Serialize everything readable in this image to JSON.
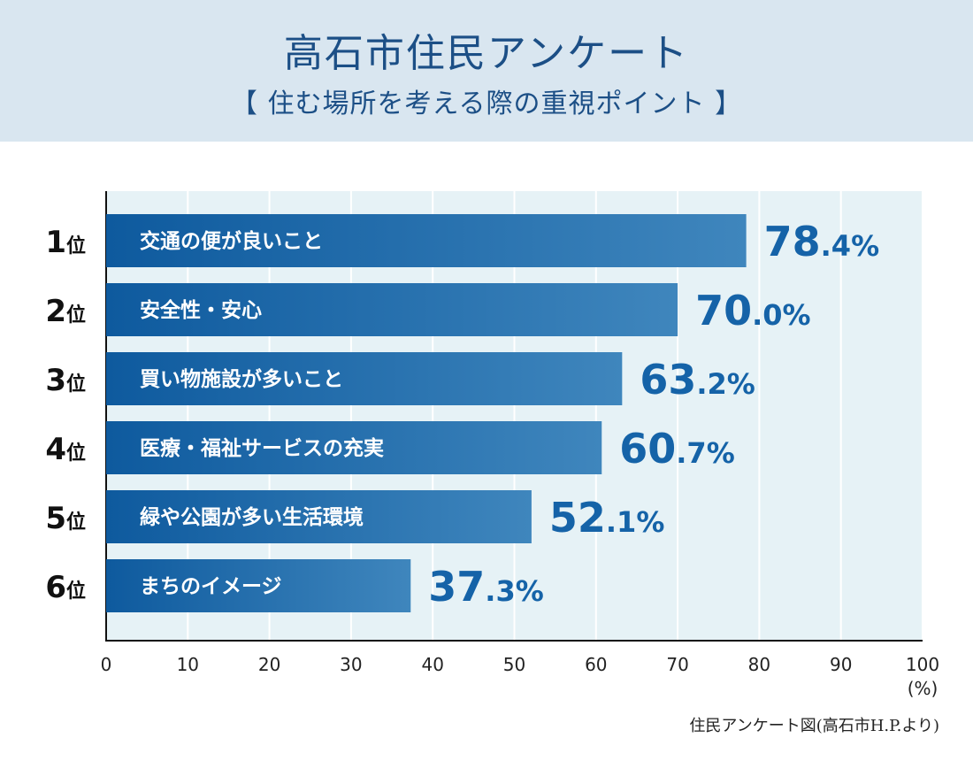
{
  "header": {
    "title": "高石市住民アンケート",
    "subtitle": "【 住む場所を考える際の重視ポイント 】"
  },
  "source": "住民アンケート図(高石市H.P.より)",
  "colors": {
    "header_bg": "#d9e6f0",
    "plot_bg": "#e6f2f6",
    "bar_dark": "#0e5a9e",
    "bar_light": "#3f86bd",
    "value_text": "#1563a8"
  },
  "chart_data": {
    "type": "bar",
    "orientation": "horizontal",
    "title": "高石市住民アンケート",
    "subtitle": "【 住む場所を考える際の重視ポイント 】",
    "rank_suffix": "位",
    "ranks": [
      "1",
      "2",
      "3",
      "4",
      "5",
      "6"
    ],
    "categories": [
      "交通の便が良いこと",
      "安全性・安心",
      "買い物施設が多いこと",
      "医療・福祉サービスの充実",
      "緑や公園が多い生活環境",
      "まちのイメージ"
    ],
    "values": [
      78.4,
      70.0,
      63.2,
      60.7,
      52.1,
      37.3
    ],
    "value_unit": "%",
    "xlim": [
      0,
      100
    ],
    "xticks": [
      0,
      10,
      20,
      30,
      40,
      50,
      60,
      70,
      80,
      90,
      100
    ],
    "xunit_label": "(%)",
    "grid": true
  }
}
